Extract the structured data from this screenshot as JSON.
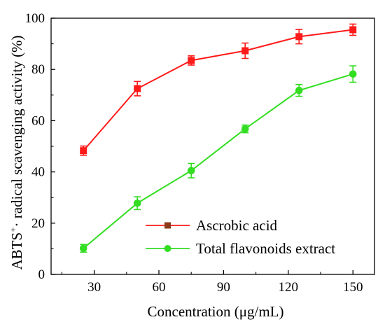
{
  "chart_data": {
    "type": "line",
    "xlabel": "Concentration (μg/mL)",
    "ylabel_main": "ABTS",
    "ylabel_superscript": "+",
    "ylabel_rest": "· radical scavenging activity (%)",
    "x": [
      25,
      50,
      75,
      100,
      125,
      150
    ],
    "xlim": [
      10,
      160
    ],
    "ylim": [
      0,
      100
    ],
    "xticks": [
      30,
      60,
      90,
      120,
      150
    ],
    "yticks": [
      0,
      20,
      40,
      60,
      80,
      100
    ],
    "grid": false,
    "legend_position": "bottom-right",
    "series": [
      {
        "name": "Ascrobic acid",
        "color": "#ff1a1a",
        "marker": "square",
        "values": [
          48.3,
          72.5,
          83.5,
          87.3,
          92.8,
          95.5
        ],
        "errors": [
          1.8,
          2.8,
          1.8,
          3.0,
          2.8,
          2.2
        ]
      },
      {
        "name": "Total flavonoids extract",
        "color": "#33dd22",
        "marker": "circle",
        "values": [
          10.2,
          27.8,
          40.5,
          56.8,
          71.8,
          78.2
        ],
        "errors": [
          1.5,
          2.5,
          2.8,
          1.5,
          2.3,
          3.2
        ]
      }
    ]
  }
}
